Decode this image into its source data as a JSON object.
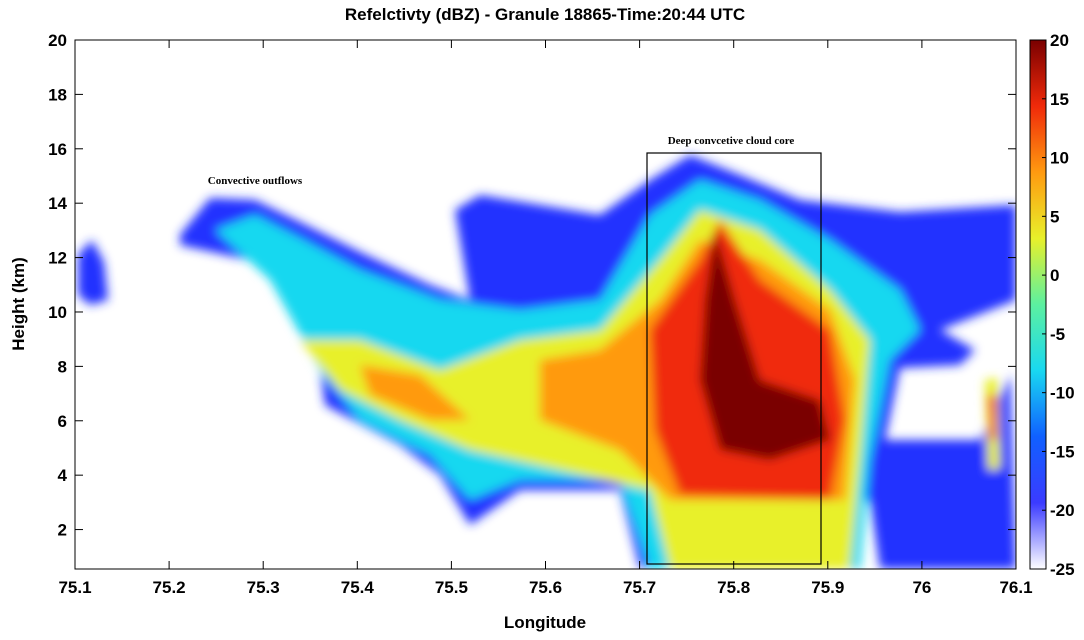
{
  "chart_data": {
    "type": "heatmap",
    "title": "Refelctivty (dBZ) - Granule 18865-Time:20:44 UTC",
    "x_label": "Longitude",
    "y_label": "Height (km)",
    "xlim": [
      75.1,
      76.1
    ],
    "xticks": [
      75.1,
      75.2,
      75.3,
      75.4,
      75.5,
      75.6,
      75.7,
      75.8,
      75.9,
      76,
      76.1
    ],
    "ylim": [
      0.55,
      20
    ],
    "yticks": [
      2,
      4,
      6,
      8,
      10,
      12,
      14,
      16,
      18,
      20
    ],
    "colorbar": {
      "lim": [
        -25,
        20
      ],
      "ticks": [
        -25,
        -20,
        -15,
        -10,
        -5,
        0,
        5,
        10,
        15,
        20
      ],
      "colors": [
        "#ffffff",
        "#3b3bff",
        "#1060ff",
        "#19d8f0",
        "#5cf0a0",
        "#e8f02a",
        "#ff9a10",
        "#f02a0a",
        "#7a0000"
      ]
    },
    "annotations": [
      "Convective outflows",
      "Deep convcetive cloud core"
    ]
  }
}
